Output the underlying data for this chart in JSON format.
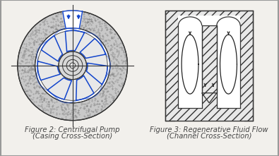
{
  "bg_color": "#f2f0ec",
  "fig2_caption_line1": "Figure 2: Centrifugal Pump",
  "fig2_caption_line2": "(Casing Cross-Section)",
  "fig3_caption_line1": "Figure 3: Regenerative Fluid Flow",
  "fig3_caption_line2": "(Channel Cross-Section)",
  "caption_fontsize": 7.2,
  "caption_style": "italic",
  "text_color": "#444444",
  "line_color": "#333333",
  "blue_color": "#1144cc",
  "hatch_color": "#555555"
}
